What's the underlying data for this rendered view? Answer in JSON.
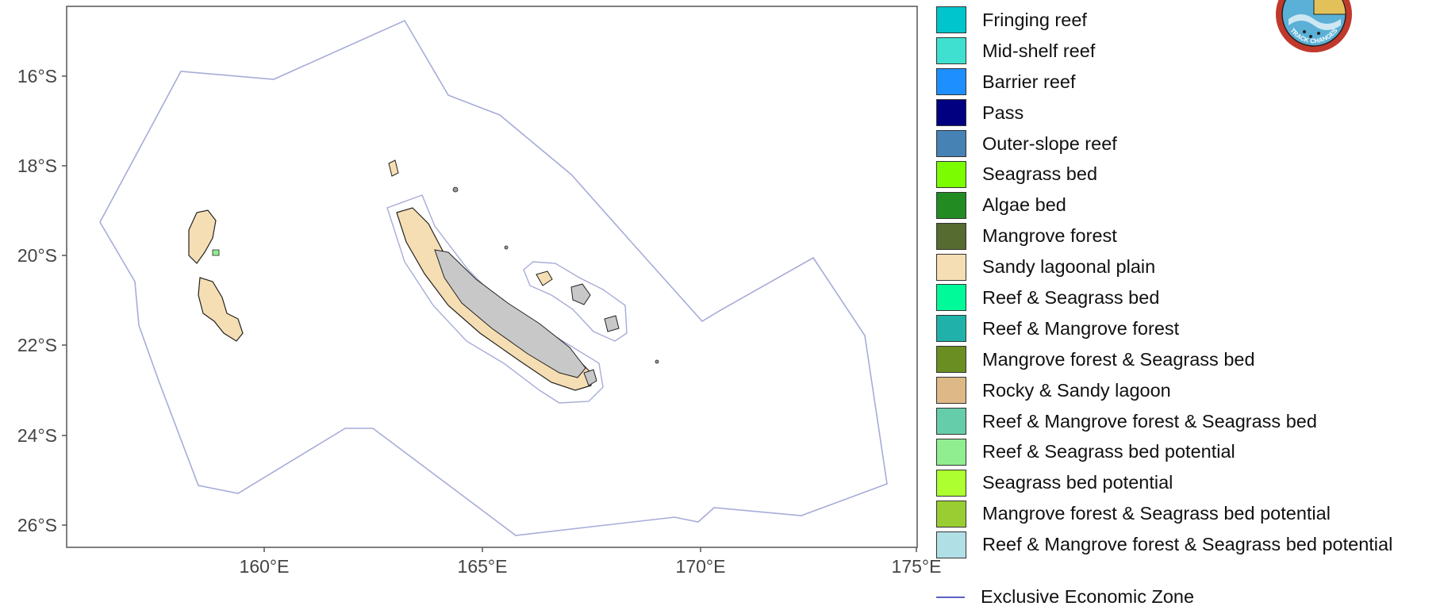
{
  "map": {
    "y_ticks": [
      "16°S",
      "18°S",
      "20°S",
      "22°S",
      "24°S",
      "26°S"
    ],
    "x_ticks": [
      "160°E",
      "165°E",
      "170°E",
      "175°E"
    ]
  },
  "legend": {
    "items": [
      {
        "label": "Fringing reef",
        "color": "#00c5cd"
      },
      {
        "label": "Mid-shelf reef",
        "color": "#40e0d0"
      },
      {
        "label": "Barrier reef",
        "color": "#1e8fff"
      },
      {
        "label": "Pass",
        "color": "#000080"
      },
      {
        "label": "Outer-slope reef",
        "color": "#4682b4"
      },
      {
        "label": "Seagrass bed",
        "color": "#7cfc00"
      },
      {
        "label": "Algae bed",
        "color": "#228b22"
      },
      {
        "label": "Mangrove forest",
        "color": "#556b2f"
      },
      {
        "label": "Sandy lagoonal plain",
        "color": "#f5deb3"
      },
      {
        "label": "Reef & Seagrass bed",
        "color": "#00fa9a"
      },
      {
        "label": "Reef & Mangrove forest",
        "color": "#20b2aa"
      },
      {
        "label": "Mangrove forest & Seagrass bed",
        "color": "#6b8e23"
      },
      {
        "label": "Rocky & Sandy lagoon",
        "color": "#deb887"
      },
      {
        "label": "Reef & Mangrove forest & Seagrass bed",
        "color": "#66cdaa"
      },
      {
        "label": "Reef & Seagrass bed potential",
        "color": "#90ee90"
      },
      {
        "label": "Seagrass bed potential",
        "color": "#adff2f"
      },
      {
        "label": "Mangrove forest & Seagrass bed potential",
        "color": "#9acd32"
      },
      {
        "label": "Reef & Mangrove forest & Seagrass bed potential",
        "color": "#b0e0e6"
      }
    ],
    "eez_label": "Exclusive Economic Zone",
    "eez_color": "#5b5fc7"
  },
  "colors": {
    "land": "#c8c8c8",
    "sandy": "#f5deb3",
    "lagoon_outline": "#9aa0d8"
  },
  "logo": {
    "text": "TRACK CHANGES"
  }
}
